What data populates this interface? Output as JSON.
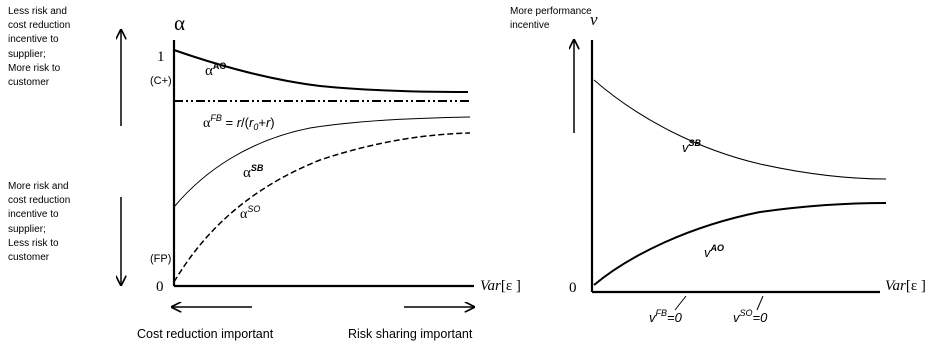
{
  "left_panel": {
    "top_note": [
      "Less risk and",
      "cost reduction",
      "incentive to",
      "supplier;",
      "More risk to",
      "customer"
    ],
    "bottom_note": [
      "More risk and",
      "cost reduction",
      "incentive to",
      "supplier;",
      "Less risk to",
      "customer"
    ],
    "y_axis_symbol": "α",
    "tick_one": "1",
    "tick_zero": "0",
    "tag_cplus": "(C+)",
    "tag_fp": "(FP)",
    "x_axis_prefix": "Var",
    "x_axis_suffix": "[ε ]",
    "curves": {
      "ao": {
        "base": "α",
        "sup": "AO"
      },
      "fb": {
        "base": "α",
        "sup": "FB",
        "rest_1": " = ",
        "r1": "r",
        "rest_2": "/(",
        "r0": "r",
        "r0_sub": "0",
        "rest_3": "+",
        "r2": "r",
        "rest_4": ")"
      },
      "sb": {
        "base": "α",
        "sup": "SB"
      },
      "so": {
        "base": "α",
        "sup": "SO"
      }
    },
    "arrow_left_label": "Cost reduction important",
    "arrow_right_label": "Risk sharing important"
  },
  "right_panel": {
    "top_note": [
      "More performance",
      "incentive"
    ],
    "y_axis_symbol": "v",
    "tick_zero": "0",
    "x_axis_prefix": "Var",
    "x_axis_suffix": "[ε ]",
    "curves": {
      "sb": {
        "base": "v",
        "sup": "SB"
      },
      "ao": {
        "base": "v",
        "sup": "AO"
      }
    },
    "axis_notes": {
      "fb": {
        "base": "v",
        "sup": "FB",
        "rest": "=0"
      },
      "so": {
        "base": "v",
        "sup": "SO",
        "rest": "=0"
      }
    }
  }
}
